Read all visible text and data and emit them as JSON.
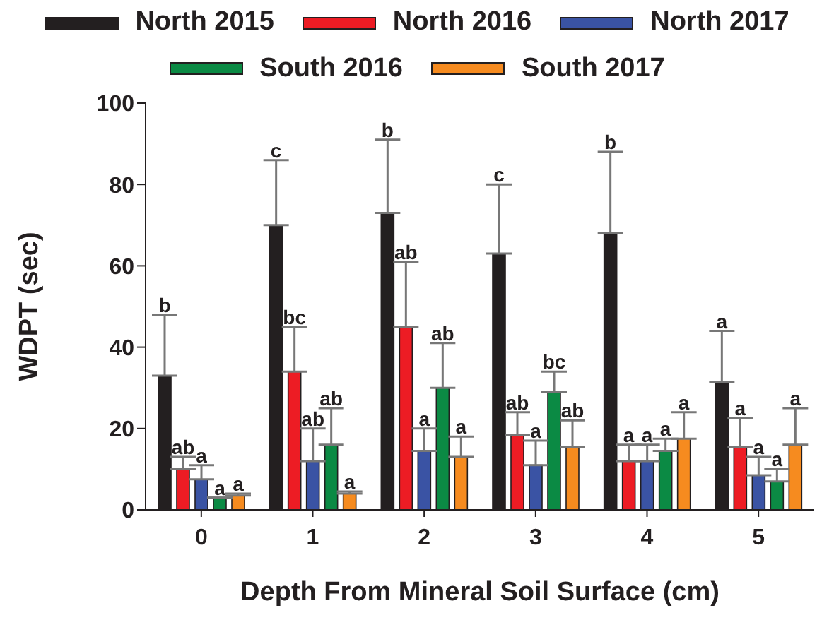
{
  "chart_data": {
    "type": "bar",
    "xlabel": "Depth From Mineral Soil Surface (cm)",
    "ylabel": "WDPT (sec)",
    "categories": [
      "0",
      "1",
      "2",
      "3",
      "4",
      "5"
    ],
    "ylim": [
      0,
      100
    ],
    "yticks": [
      0,
      20,
      40,
      60,
      80,
      100
    ],
    "grid": false,
    "legend": "top",
    "series": [
      {
        "name": "North 2015",
        "color": "#231f20",
        "values": [
          33,
          70,
          73,
          63,
          68,
          31.5
        ],
        "errors": [
          [
            33,
            48
          ],
          [
            70,
            86
          ],
          [
            73,
            91
          ],
          [
            63,
            80
          ],
          [
            68,
            88
          ],
          [
            31.5,
            44
          ]
        ]
      },
      {
        "name": "North 2016",
        "color": "#ed1c24",
        "values": [
          10,
          34,
          45,
          18.5,
          12,
          15.5
        ],
        "errors": [
          [
            10,
            13
          ],
          [
            34,
            45
          ],
          [
            45,
            61
          ],
          [
            18.5,
            24
          ],
          [
            12,
            16
          ],
          [
            15.5,
            22.5
          ]
        ]
      },
      {
        "name": "North 2017",
        "color": "#3a53a4",
        "values": [
          7.5,
          12,
          14.5,
          11,
          12,
          8.5
        ],
        "errors": [
          [
            7.5,
            11
          ],
          [
            12,
            20
          ],
          [
            14.5,
            20
          ],
          [
            11,
            17
          ],
          [
            12,
            16
          ],
          [
            8.5,
            13
          ]
        ]
      },
      {
        "name": "South 2016",
        "color": "#0b8a44",
        "values": [
          3,
          16,
          30,
          29,
          14.5,
          7
        ],
        "errors": [
          [
            3,
            3
          ],
          [
            16,
            25
          ],
          [
            30,
            41
          ],
          [
            29,
            34
          ],
          [
            14.5,
            17.5
          ],
          [
            7,
            10
          ]
        ]
      },
      {
        "name": "South 2017",
        "color": "#f68b1f",
        "values": [
          3.5,
          4,
          13,
          15.5,
          17.5,
          16
        ],
        "errors": [
          [
            3.5,
            4
          ],
          [
            4,
            4.5
          ],
          [
            13,
            18
          ],
          [
            15.5,
            22
          ],
          [
            17.5,
            24
          ],
          [
            16,
            25
          ]
        ]
      }
    ],
    "annotations": [
      "b",
      "c",
      "b",
      "c",
      "b",
      "a",
      "ab",
      "bc",
      "ab",
      "ab",
      "a",
      "a",
      "a",
      "ab",
      "a",
      "a",
      "a",
      "a",
      "a",
      "ab",
      "ab",
      "bc",
      "a",
      "a",
      "a",
      "a",
      "a",
      "ab",
      "a",
      "a"
    ]
  }
}
